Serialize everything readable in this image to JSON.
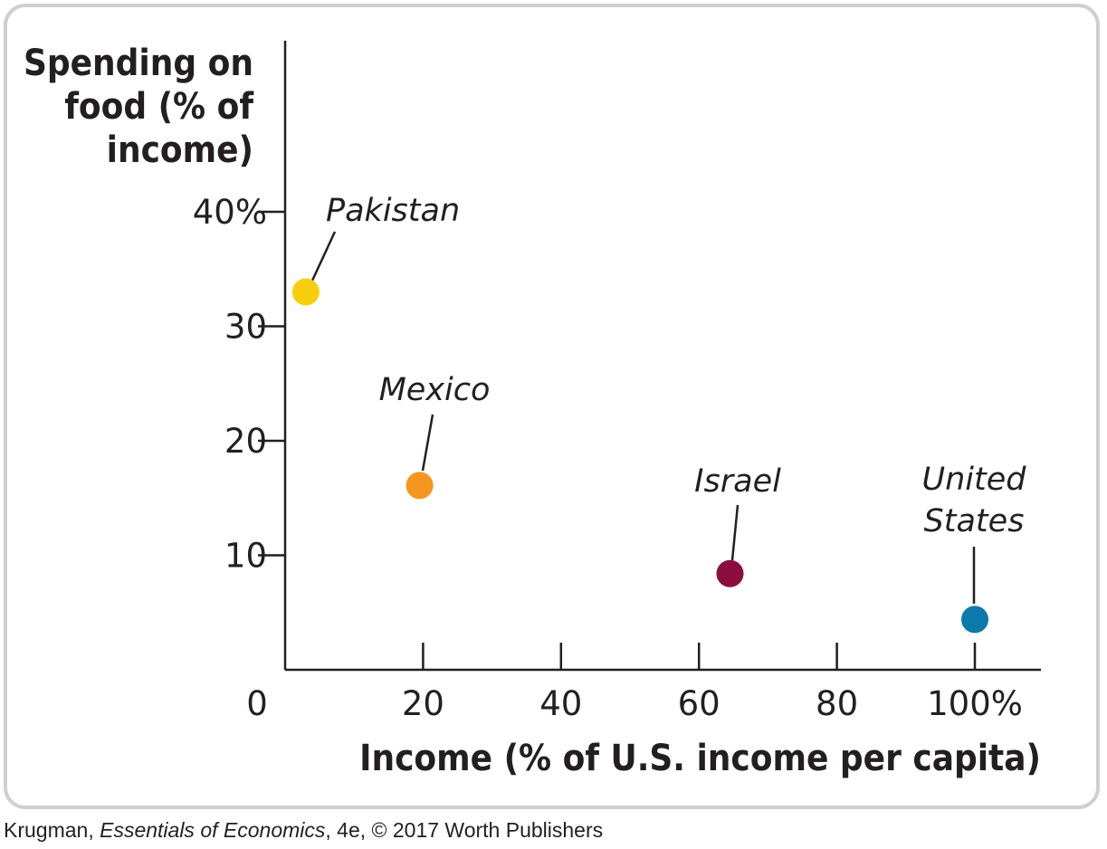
{
  "chart_data": {
    "type": "scatter",
    "xlabel": "Income (% of U.S. income per capita)",
    "ylabel_lines": [
      "Spending on",
      "food (% of",
      "income)"
    ],
    "xlim": [
      0,
      110
    ],
    "ylim": [
      0,
      48
    ],
    "x_ticks": [
      20,
      40,
      60,
      80,
      100
    ],
    "x_tick_labels": [
      "20",
      "40",
      "60",
      "80",
      "100%"
    ],
    "y_ticks": [
      10,
      20,
      30,
      40
    ],
    "y_tick_labels": [
      "10",
      "20",
      "30",
      "40%"
    ],
    "origin_label": "0",
    "grid": false,
    "points": [
      {
        "label_lines": [
          "Pakistan"
        ],
        "x": 3,
        "y": 33,
        "color": "#f7cf0e"
      },
      {
        "label_lines": [
          "Mexico"
        ],
        "x": 19.5,
        "y": 16.1,
        "color": "#f5961e"
      },
      {
        "label_lines": [
          "Israel"
        ],
        "x": 64.5,
        "y": 8.4,
        "color": "#8c0e3f"
      },
      {
        "label_lines": [
          "United",
          "States"
        ],
        "x": 100,
        "y": 4.4,
        "color": "#0b7aaa"
      }
    ]
  },
  "credit": {
    "author": "Krugman,",
    "book": "Essentials of Economics",
    "rest": ", 4e, © 2017 Worth Publishers"
  }
}
